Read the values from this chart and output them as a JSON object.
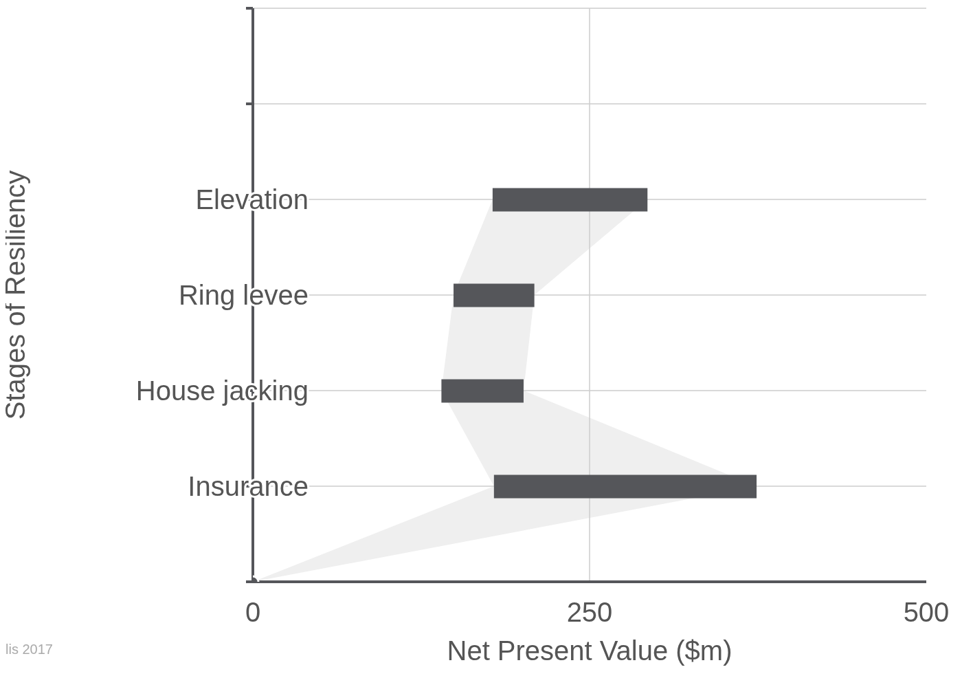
{
  "chart_data": {
    "type": "bar",
    "orientation": "horizontal",
    "xlabel": "Net Present Value ($m)",
    "ylabel": "Stages of Resiliency",
    "categories": [
      null,
      null,
      "Elevation",
      "Ring levee",
      "House jacking",
      "Insurance",
      null
    ],
    "series": [
      {
        "color": "#55565a",
        "base": [
          null,
          null,
          178,
          149,
          140,
          179,
          null
        ],
        "values": [
          null,
          null,
          115,
          60,
          61,
          195,
          null
        ]
      },
      {
        "type": "area",
        "color": "#efefef",
        "values": [
          null,
          null,
          null,
          null,
          null,
          null,
          null
        ],
        "lower": [
          null,
          null,
          178,
          149,
          140,
          179,
          0
        ],
        "upper": [
          null,
          null,
          293,
          209,
          201,
          374,
          0
        ]
      },
      {
        "type": "scatter",
        "color": "#55565a",
        "marker": "circle",
        "values": [
          null,
          null,
          null,
          null,
          null,
          null,
          0
        ]
      }
    ],
    "xlim": [
      0,
      500
    ],
    "xticks": [
      0,
      250,
      500
    ],
    "grid": true,
    "legend": false,
    "annotations": [
      "lis 2017"
    ]
  }
}
